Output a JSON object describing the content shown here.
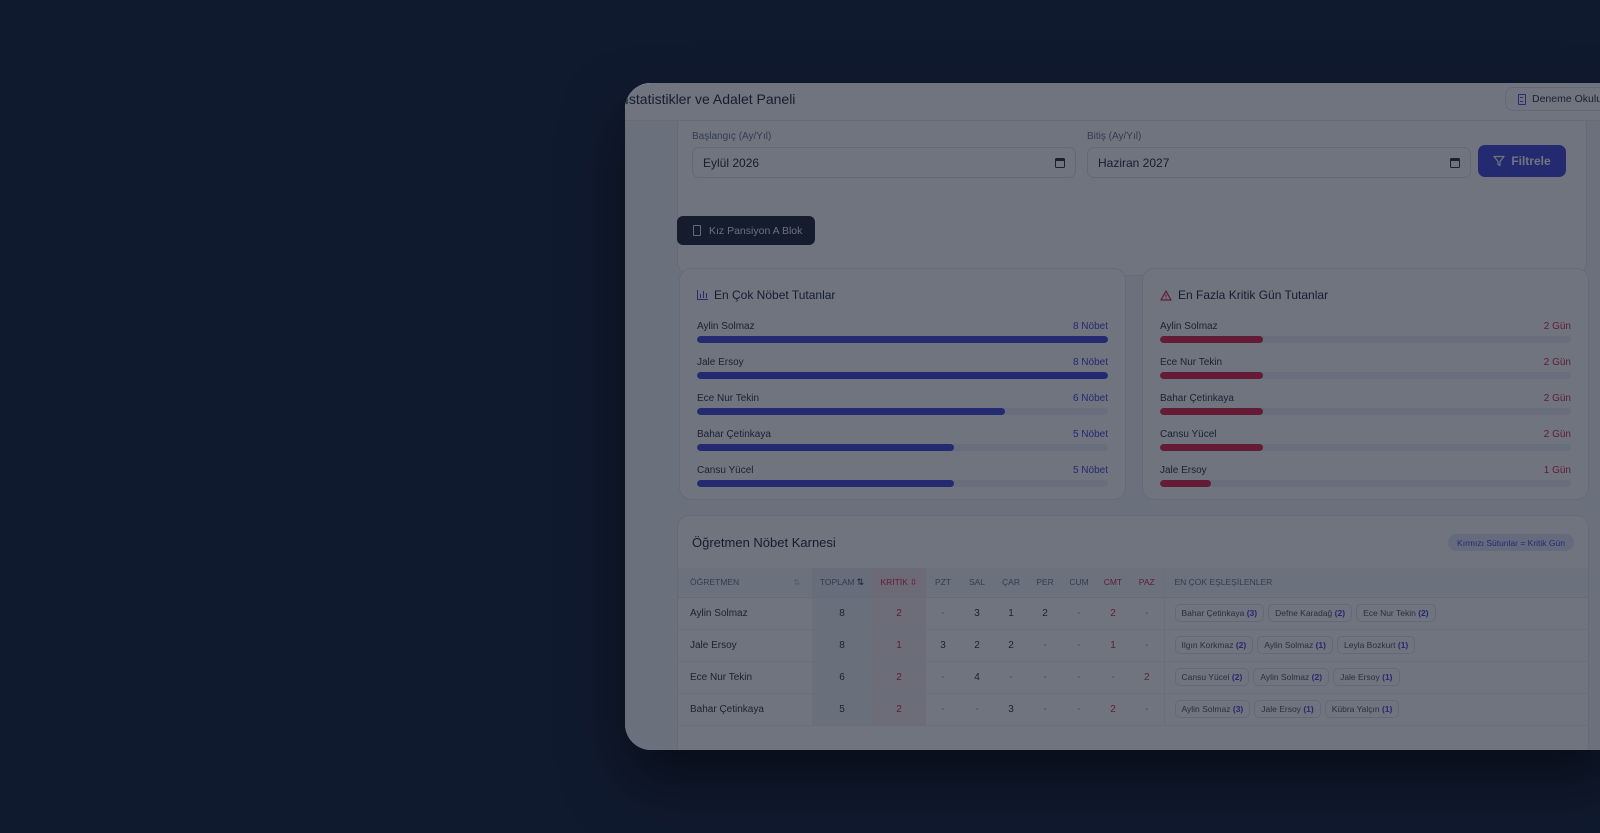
{
  "header": {
    "title": "İstatistikler ve Adalet Paneli",
    "school": "Deneme Okulu"
  },
  "filters": {
    "start_label": "Başlangıç (Ay/Yıl)",
    "start_value": "Eylül 2026",
    "end_label": "Bitiş (Ay/Yıl)",
    "end_value": "Haziran 2027",
    "button": "Filtrele"
  },
  "block": {
    "label": "Kız Pansiyon A Blok"
  },
  "most_duties": {
    "title": "En Çok Nöbet Tutanlar",
    "max": 8,
    "items": [
      {
        "name": "Aylin Solmaz",
        "value": 8,
        "label": "8 Nöbet"
      },
      {
        "name": "Jale Ersoy",
        "value": 8,
        "label": "8 Nöbet"
      },
      {
        "name": "Ece Nur Tekin",
        "value": 6,
        "label": "6 Nöbet"
      },
      {
        "name": "Bahar Çetinkaya",
        "value": 5,
        "label": "5 Nöbet"
      },
      {
        "name": "Cansu Yücel",
        "value": 5,
        "label": "5 Nöbet"
      }
    ]
  },
  "most_critical": {
    "title": "En Fazla Kritik Gün Tutanlar",
    "max": 8,
    "items": [
      {
        "name": "Aylin Solmaz",
        "value": 2,
        "label": "2 Gün"
      },
      {
        "name": "Ece Nur Tekin",
        "value": 2,
        "label": "2 Gün"
      },
      {
        "name": "Bahar Çetinkaya",
        "value": 2,
        "label": "2 Gün"
      },
      {
        "name": "Cansu Yücel",
        "value": 2,
        "label": "2 Gün"
      },
      {
        "name": "Jale Ersoy",
        "value": 1,
        "label": "1 Gün"
      }
    ]
  },
  "report": {
    "title": "Öğretmen Nöbet Karnesi",
    "legend": "Kırmızı Sütunlar = Kritik Gün",
    "columns": {
      "teacher": "ÖĞRETMEN",
      "total": "TOPLAM",
      "critical": "KRİTİK",
      "mon": "PZT",
      "tue": "SAL",
      "wed": "ÇAR",
      "thu": "PER",
      "fri": "CUM",
      "sat": "CMT",
      "sun": "PAZ",
      "pairs": "EN ÇOK EŞLEŞİLENLER"
    },
    "rows": [
      {
        "name": "Aylin Solmaz",
        "total": "8",
        "critical": "2",
        "days": [
          "-",
          "3",
          "1",
          "2",
          "-",
          "2",
          "-"
        ],
        "pairs": [
          {
            "name": "Bahar Çetinkaya",
            "count": "(3)"
          },
          {
            "name": "Defne Karadağ",
            "count": "(2)"
          },
          {
            "name": "Ece Nur Tekin",
            "count": "(2)"
          }
        ]
      },
      {
        "name": "Jale Ersoy",
        "total": "8",
        "critical": "1",
        "days": [
          "3",
          "2",
          "2",
          "-",
          "-",
          "1",
          "-"
        ],
        "pairs": [
          {
            "name": "Ilgın Korkmaz",
            "count": "(2)"
          },
          {
            "name": "Aylin Solmaz",
            "count": "(1)"
          },
          {
            "name": "Leyla Bozkurt",
            "count": "(1)"
          }
        ]
      },
      {
        "name": "Ece Nur Tekin",
        "total": "6",
        "critical": "2",
        "days": [
          "-",
          "4",
          "-",
          "-",
          "-",
          "-",
          "2"
        ],
        "pairs": [
          {
            "name": "Cansu Yücel",
            "count": "(2)"
          },
          {
            "name": "Aylin Solmaz",
            "count": "(2)"
          },
          {
            "name": "Jale Ersoy",
            "count": "(1)"
          }
        ]
      },
      {
        "name": "Bahar Çetinkaya",
        "total": "5",
        "critical": "2",
        "days": [
          "-",
          "-",
          "3",
          "-",
          "-",
          "2",
          "-"
        ],
        "pairs": [
          {
            "name": "Aylin Solmaz",
            "count": "(3)"
          },
          {
            "name": "Jale Ersoy",
            "count": "(1)"
          },
          {
            "name": "Kübra Yalçın",
            "count": "(1)"
          }
        ]
      }
    ]
  }
}
